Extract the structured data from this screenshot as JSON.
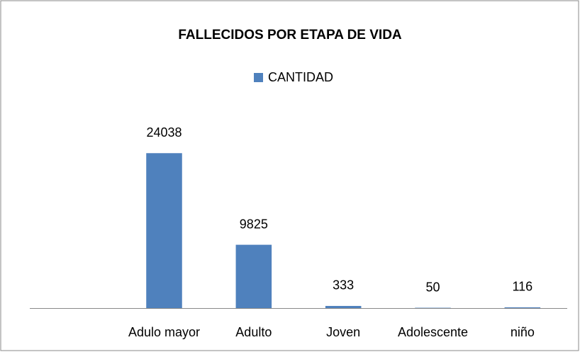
{
  "chart_data": {
    "type": "bar",
    "title": "FALLECIDOS POR ETAPA DE VIDA",
    "categories": [
      null,
      "Adulo mayor",
      "Adulto",
      "Joven",
      "Adolescente",
      "niño"
    ],
    "series": [
      {
        "name": "CANTIDAD",
        "color": "#4f81bd",
        "values": [
          null,
          24038,
          9825,
          333,
          50,
          116
        ]
      }
    ],
    "ylim": [
      0,
      30000
    ],
    "legend": "top"
  }
}
